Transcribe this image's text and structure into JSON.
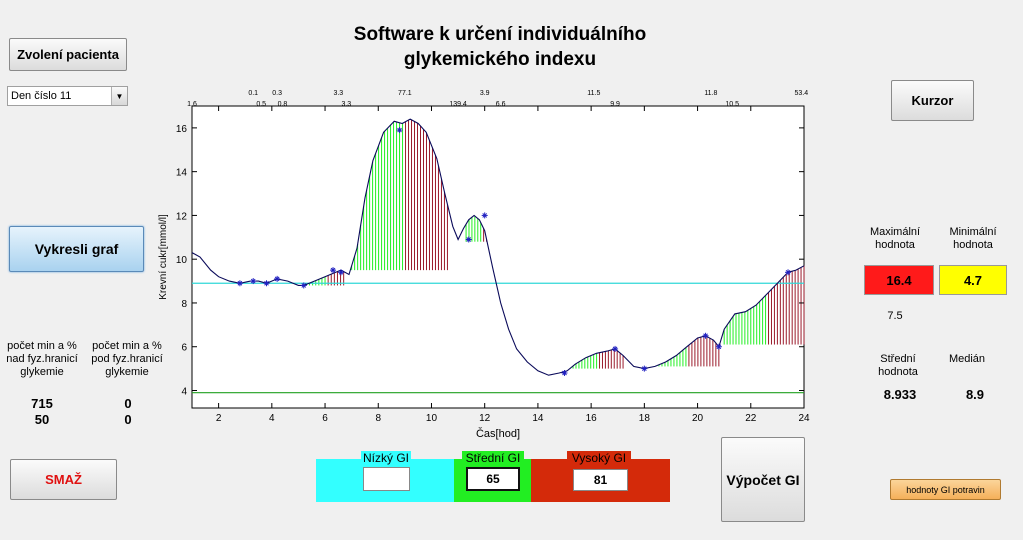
{
  "title_line1": "Software k určení individuálního",
  "title_line2": "glykemického indexu",
  "buttons": {
    "select_patient": "Zvolení pacienta",
    "draw_graph": "Vykresli graf",
    "delete": "SMAŽ",
    "cursor": "Kurzor",
    "compute_gi": "Výpočet GI",
    "food_gi": "hodnoty GI potravin"
  },
  "day_select": {
    "value": "Den číslo 11"
  },
  "stats_left": {
    "above_label": "počet min a %\nnad fyz.hranicí\nglykemie",
    "below_label": "počet min a %\npod fyz.hranicí\nglykemie",
    "above_minutes": "715",
    "above_percent": "50",
    "below_minutes": "0",
    "below_percent": "0"
  },
  "stats_right": {
    "max_label": "Maximální\nhodnota",
    "min_label": "Minimální\nhodnota",
    "max_value": "16.4",
    "min_value": "4.7",
    "extra_value": "7.5",
    "mean_label": "Střední\nhodnota",
    "median_label": "Medián",
    "mean_value": "8.933",
    "median_value": "8.9"
  },
  "gi": {
    "low_label": "Nízký GI",
    "mid_label": "Střední GI",
    "high_label": "Vysoký GI",
    "low_value": "",
    "mid_value": "65",
    "high_value": "81"
  },
  "colors": {
    "max_box": "#ff1a1a",
    "min_box": "#ffff00",
    "low_gi": "#33ffff",
    "mid_gi": "#22ee22",
    "high_gi": "#d42a0a",
    "curve": "#0a0a5a",
    "upper_line": "#30d8d8",
    "lower_line": "#20a020"
  },
  "chart_data": {
    "type": "line",
    "xlabel": "Čas[hod]",
    "ylabel": "Krevní cukr[mmol/l]",
    "xlim": [
      1,
      24
    ],
    "ylim": [
      3.2,
      17
    ],
    "xticks": [
      2,
      4,
      6,
      8,
      10,
      12,
      14,
      16,
      18,
      20,
      22,
      24
    ],
    "yticks": [
      4,
      6,
      8,
      10,
      12,
      14,
      16
    ],
    "upper_limit": 8.9,
    "lower_limit": 3.9,
    "series": [
      {
        "x": [
          1.0,
          1.3,
          1.7,
          2.0,
          2.4,
          2.8,
          3.2,
          3.5,
          3.8,
          4.2,
          4.6,
          5.0,
          5.2,
          5.6,
          6.0,
          6.4,
          6.6,
          6.9,
          7.2,
          7.5,
          7.8,
          8.2,
          8.6,
          8.9,
          9.2,
          9.5,
          9.8,
          10.2,
          10.5,
          10.8,
          11.0,
          11.2,
          11.4,
          11.6,
          11.8,
          12.0,
          12.3,
          12.6,
          12.9,
          13.2,
          13.6,
          14.0,
          14.4,
          14.8,
          15.1,
          15.4,
          15.8,
          16.2,
          16.6,
          16.9,
          17.2,
          17.6,
          18.0,
          18.4,
          18.8,
          19.2,
          19.6,
          20.0,
          20.3,
          20.6,
          20.8,
          21.0,
          21.4,
          21.8,
          22.2,
          22.6,
          23.0,
          23.4,
          23.7,
          24.0
        ],
        "y": [
          10.3,
          10.1,
          9.5,
          9.2,
          9.0,
          8.9,
          9.0,
          9.0,
          8.9,
          9.1,
          9.0,
          8.8,
          8.8,
          9.0,
          9.2,
          9.4,
          9.5,
          9.3,
          10.5,
          12.8,
          14.5,
          15.8,
          16.3,
          16.2,
          16.4,
          16.2,
          15.8,
          14.6,
          13.0,
          11.5,
          10.9,
          11.4,
          11.8,
          12.0,
          11.8,
          11.3,
          9.6,
          8.0,
          6.8,
          5.9,
          5.3,
          4.9,
          4.7,
          4.8,
          4.9,
          5.2,
          5.5,
          5.7,
          5.8,
          5.9,
          5.6,
          5.1,
          5.0,
          5.1,
          5.3,
          5.6,
          6.0,
          6.4,
          6.5,
          6.3,
          6.0,
          6.8,
          7.5,
          7.6,
          7.9,
          8.4,
          8.9,
          9.4,
          9.5,
          9.7
        ]
      }
    ],
    "markers": [
      {
        "x": 2.8,
        "y": 8.9
      },
      {
        "x": 3.3,
        "y": 9.0
      },
      {
        "x": 3.8,
        "y": 8.9
      },
      {
        "x": 4.2,
        "y": 9.1
      },
      {
        "x": 5.2,
        "y": 8.8
      },
      {
        "x": 6.3,
        "y": 9.5
      },
      {
        "x": 6.6,
        "y": 9.4
      },
      {
        "x": 8.8,
        "y": 15.9
      },
      {
        "x": 11.4,
        "y": 10.9
      },
      {
        "x": 12.0,
        "y": 12.0
      },
      {
        "x": 15.0,
        "y": 4.8
      },
      {
        "x": 16.9,
        "y": 5.9
      },
      {
        "x": 18.0,
        "y": 5.0
      },
      {
        "x": 20.3,
        "y": 6.5
      },
      {
        "x": 20.8,
        "y": 6.0
      },
      {
        "x": 23.4,
        "y": 9.4
      }
    ],
    "fill_segments": [
      {
        "x1": 5.3,
        "x2": 6.7,
        "base": 8.8
      },
      {
        "x1": 7.0,
        "x2": 10.6,
        "base": 9.5
      },
      {
        "x1": 11.3,
        "x2": 12.4,
        "base": 10.8
      },
      {
        "x1": 15.1,
        "x2": 17.2,
        "base": 5.0
      },
      {
        "x1": 18.1,
        "x2": 20.8,
        "base": 5.1
      },
      {
        "x1": 21.0,
        "x2": 24.0,
        "base": 6.1
      }
    ],
    "annotations_top": [
      {
        "x": 1.0,
        "text": "1.6",
        "row": 2
      },
      {
        "x": 3.3,
        "text": "0.1",
        "row": 1
      },
      {
        "x": 3.6,
        "text": "0.5",
        "row": 2
      },
      {
        "x": 4.2,
        "text": "0.3",
        "row": 1
      },
      {
        "x": 4.4,
        "text": "0.8",
        "row": 2
      },
      {
        "x": 6.5,
        "text": "3.3",
        "row": 1
      },
      {
        "x": 6.8,
        "text": "3.3",
        "row": 2
      },
      {
        "x": 9.0,
        "text": "77.1",
        "row": 1
      },
      {
        "x": 11.0,
        "text": "139.4",
        "row": 2
      },
      {
        "x": 12.0,
        "text": "3.9",
        "row": 1
      },
      {
        "x": 12.6,
        "text": "6.6",
        "row": 2
      },
      {
        "x": 16.1,
        "text": "11.5",
        "row": 1
      },
      {
        "x": 16.9,
        "text": "9.9",
        "row": 2
      },
      {
        "x": 20.5,
        "text": "11.8",
        "row": 1
      },
      {
        "x": 21.3,
        "text": "10.5",
        "row": 2
      },
      {
        "x": 23.9,
        "text": "53.4",
        "row": 1
      }
    ]
  }
}
